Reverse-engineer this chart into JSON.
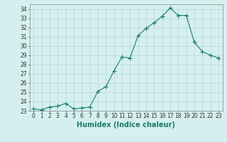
{
  "x": [
    0,
    1,
    2,
    3,
    4,
    5,
    6,
    7,
    8,
    9,
    10,
    11,
    12,
    13,
    14,
    15,
    16,
    17,
    18,
    19,
    20,
    21,
    22,
    23
  ],
  "y": [
    23.2,
    23.1,
    23.4,
    23.5,
    23.8,
    23.2,
    23.3,
    23.4,
    25.1,
    25.6,
    27.3,
    28.8,
    28.7,
    31.1,
    31.9,
    32.5,
    33.2,
    34.1,
    33.3,
    33.3,
    30.4,
    29.4,
    29.0,
    28.7
  ],
  "xlabel": "Humidex (Indice chaleur)",
  "line_color": "#1a7a6e",
  "marker": "+",
  "marker_size": 4,
  "bg_color": "#d5efef",
  "grid_color": "#b8d8d8",
  "ylim": [
    23,
    34.5
  ],
  "xlim": [
    -0.5,
    23.5
  ],
  "yticks": [
    23,
    24,
    25,
    26,
    27,
    28,
    29,
    30,
    31,
    32,
    33,
    34
  ],
  "xticks": [
    0,
    1,
    2,
    3,
    4,
    5,
    6,
    7,
    8,
    9,
    10,
    11,
    12,
    13,
    14,
    15,
    16,
    17,
    18,
    19,
    20,
    21,
    22,
    23
  ],
  "tick_fontsize": 5.5,
  "xlabel_fontsize": 7.0
}
